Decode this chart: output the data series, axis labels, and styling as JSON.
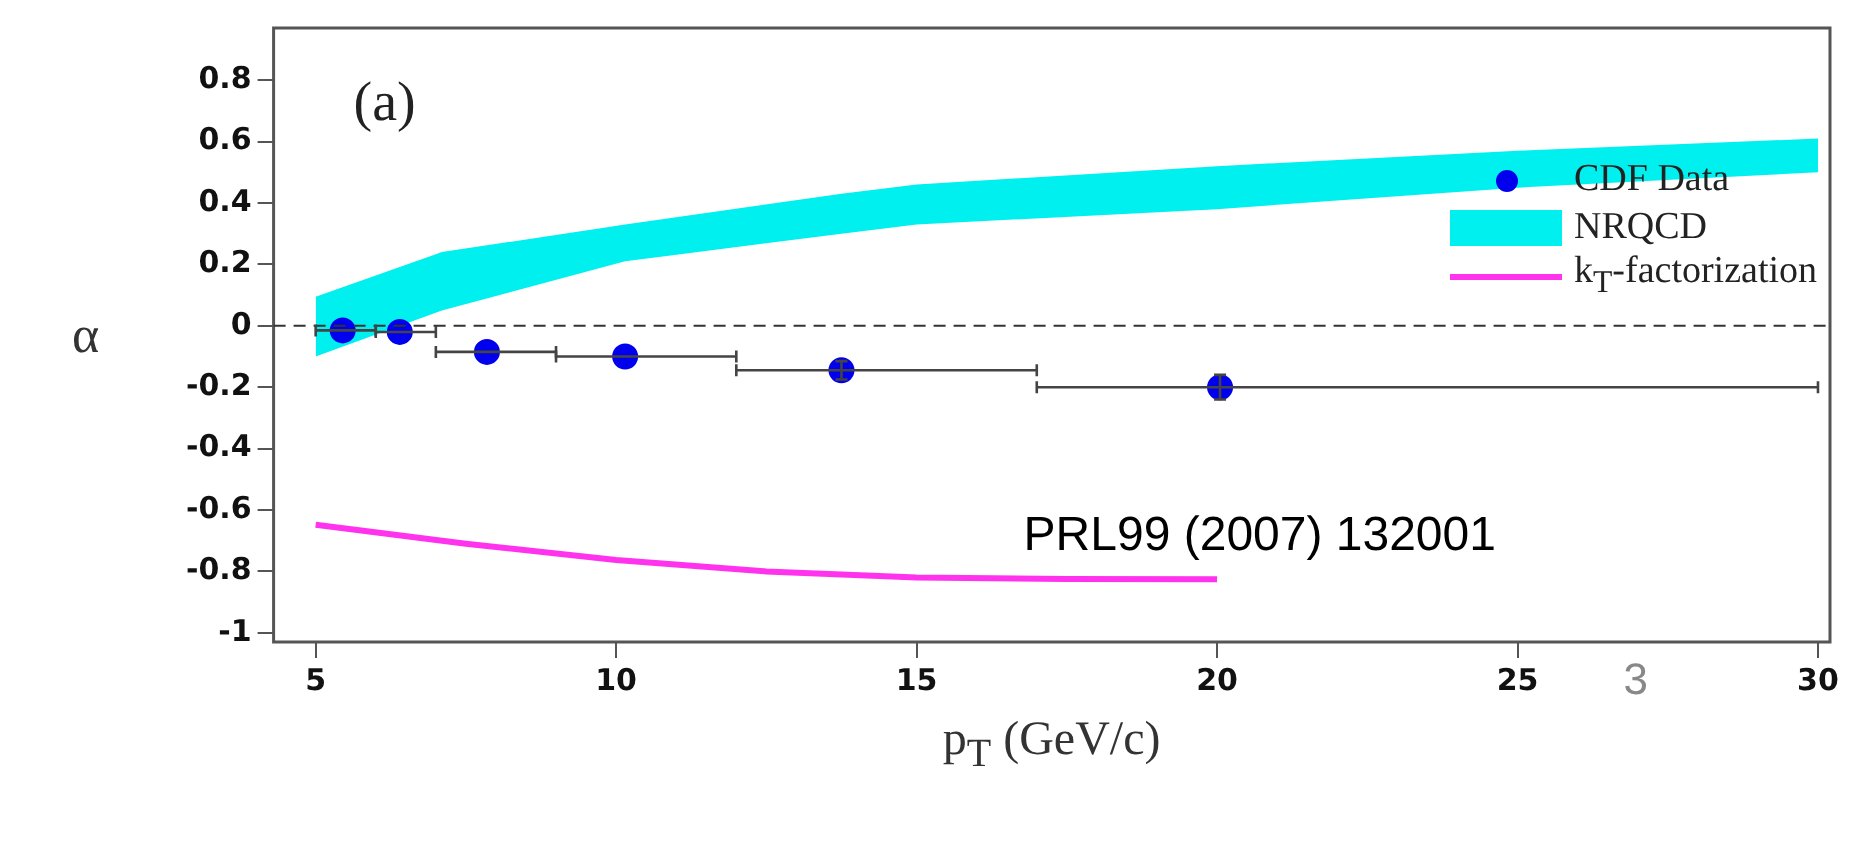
{
  "chart_data": {
    "type": "scatter",
    "xlabel": "p$_{T}$ (GeV/c)",
    "ylabel": "α",
    "xlim": [
      4.3,
      30.2
    ],
    "xticks": [
      5,
      10,
      15,
      20,
      25,
      30
    ],
    "ylim": [
      -1.03,
      0.97
    ],
    "yticks": [
      -1,
      -0.8,
      -0.6,
      -0.4,
      -0.2,
      0,
      0.2,
      0.4,
      0.6,
      0.8
    ],
    "grid": false,
    "legend": "top right",
    "marker": "circle",
    "ref_lines": [
      {
        "axis": "y",
        "value": 0,
        "color": "#333333",
        "line_style": "dashed"
      }
    ],
    "annotations": [
      "(a)",
      "PRL99 (2007) 132001",
      "3"
    ],
    "series": [
      {
        "name": "CDF Data",
        "color": "#0000ee",
        "x": [
          5.45,
          6.4,
          7.85,
          10.15,
          13.75,
          20.05
        ],
        "values": [
          -0.015,
          -0.02,
          -0.085,
          -0.1,
          -0.145,
          -0.2
        ],
        "errors": [
          null,
          null,
          null,
          null,
          0.03,
          0.04
        ],
        "xerrors": [
          [
            5,
            6
          ],
          [
            6,
            7
          ],
          [
            7,
            9
          ],
          [
            9,
            12
          ],
          [
            12,
            17
          ],
          [
            17,
            30
          ]
        ]
      },
      {
        "name": "NRQCD",
        "type": "area",
        "marker": "none",
        "color": "#00f0f0",
        "x": [
          5,
          7.1,
          10.15,
          13.75,
          15,
          20,
          25,
          30
        ],
        "values": [
          null,
          null,
          null,
          null,
          null,
          null,
          null,
          null
        ],
        "lower": [
          -0.1,
          0.05,
          0.21,
          0.3,
          0.33,
          0.38,
          0.45,
          0.5
        ],
        "upper": [
          0.095,
          0.24,
          0.33,
          0.43,
          0.46,
          0.52,
          0.57,
          0.61
        ]
      },
      {
        "name": "k$_{T}$-factorization",
        "type": "line",
        "color": "#ff33ee",
        "line_style": "solid",
        "marker": "none",
        "x": [
          5,
          7.5,
          10,
          12.5,
          15,
          17.5,
          20
        ],
        "values": [
          -0.648,
          -0.71,
          -0.763,
          -0.8,
          -0.82,
          -0.825,
          -0.826
        ]
      }
    ]
  }
}
